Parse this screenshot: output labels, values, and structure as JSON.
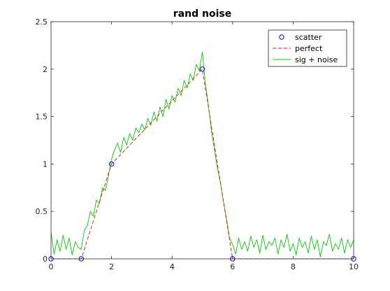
{
  "chart_data": {
    "type": "line",
    "title": "rand noise",
    "xlabel": "",
    "ylabel": "",
    "xlim": [
      0,
      10
    ],
    "ylim": [
      0,
      2.5
    ],
    "xticks": [
      0,
      2,
      4,
      6,
      8,
      10
    ],
    "xtick_labels": [
      "0",
      "2",
      "4",
      "6",
      "8",
      "10"
    ],
    "yticks": [
      0,
      0.5,
      1,
      1.5,
      2,
      2.5
    ],
    "ytick_labels": [
      "0",
      "0.5",
      "1",
      "1.5",
      "2",
      "2.5"
    ],
    "grid": false,
    "legend_position": "top-right",
    "series": [
      {
        "name": "scatter",
        "kind": "markers",
        "marker": "circle",
        "color": "#0000ff",
        "x": [
          0,
          1,
          2,
          5,
          6,
          10
        ],
        "y": [
          0,
          0,
          1,
          2,
          0,
          0
        ]
      },
      {
        "name": "perfect",
        "kind": "line",
        "style": "dashed",
        "color": "#ff0000",
        "x": [
          0,
          1,
          1.5,
          2,
          3,
          4,
          5,
          5.5,
          6,
          10
        ],
        "y": [
          0,
          0,
          0.5,
          1,
          1.333,
          1.667,
          2,
          1,
          0,
          0
        ]
      },
      {
        "name": "sig + noise",
        "kind": "line",
        "style": "solid",
        "color": "#00cc00",
        "x": [
          0,
          0.1,
          0.2,
          0.3,
          0.4,
          0.5,
          0.6,
          0.7,
          0.8,
          0.9,
          1.0,
          1.1,
          1.2,
          1.3,
          1.4,
          1.5,
          1.6,
          1.7,
          1.8,
          1.9,
          2.0,
          2.1,
          2.2,
          2.3,
          2.4,
          2.5,
          2.6,
          2.7,
          2.8,
          2.9,
          3.0,
          3.1,
          3.2,
          3.3,
          3.4,
          3.5,
          3.6,
          3.7,
          3.8,
          3.9,
          4.0,
          4.1,
          4.2,
          4.3,
          4.4,
          4.5,
          4.6,
          4.7,
          4.8,
          4.9,
          5.0,
          5.1,
          5.2,
          5.3,
          5.4,
          5.5,
          5.6,
          5.7,
          5.8,
          5.9,
          6.0,
          6.1,
          6.2,
          6.3,
          6.4,
          6.5,
          6.6,
          6.7,
          6.8,
          6.9,
          7.0,
          7.1,
          7.2,
          7.3,
          7.4,
          7.5,
          7.6,
          7.7,
          7.8,
          7.9,
          8.0,
          8.1,
          8.2,
          8.3,
          8.4,
          8.5,
          8.6,
          8.7,
          8.8,
          8.9,
          9.0,
          9.1,
          9.2,
          9.3,
          9.4,
          9.5,
          9.6,
          9.7,
          9.8,
          9.9,
          10.0
        ],
        "y": [
          0.28,
          0.05,
          0.2,
          0.08,
          0.25,
          0.1,
          0.22,
          0.04,
          0.18,
          0.12,
          0.1,
          0.3,
          0.35,
          0.5,
          0.45,
          0.62,
          0.58,
          0.75,
          0.72,
          0.88,
          1.05,
          1.15,
          1.22,
          1.12,
          1.28,
          1.2,
          1.32,
          1.25,
          1.38,
          1.33,
          1.42,
          1.36,
          1.48,
          1.41,
          1.55,
          1.45,
          1.6,
          1.5,
          1.68,
          1.58,
          1.72,
          1.65,
          1.8,
          1.72,
          1.88,
          1.8,
          1.95,
          1.88,
          2.05,
          1.98,
          2.18,
          1.85,
          1.62,
          1.35,
          1.15,
          0.95,
          0.8,
          0.6,
          0.42,
          0.22,
          0.15,
          0.05,
          0.22,
          0.1,
          0.18,
          0.08,
          0.24,
          0.12,
          0.2,
          0.06,
          0.25,
          0.1,
          0.18,
          0.14,
          0.22,
          0.05,
          0.2,
          0.12,
          0.26,
          0.08,
          0.16,
          0.04,
          0.22,
          0.12,
          0.18,
          0.06,
          0.24,
          0.1,
          0.2,
          0.02,
          0.18,
          0.14,
          0.26,
          0.08,
          0.16,
          0.1,
          0.22,
          0.06,
          0.2,
          0.12,
          0.2
        ]
      }
    ]
  }
}
